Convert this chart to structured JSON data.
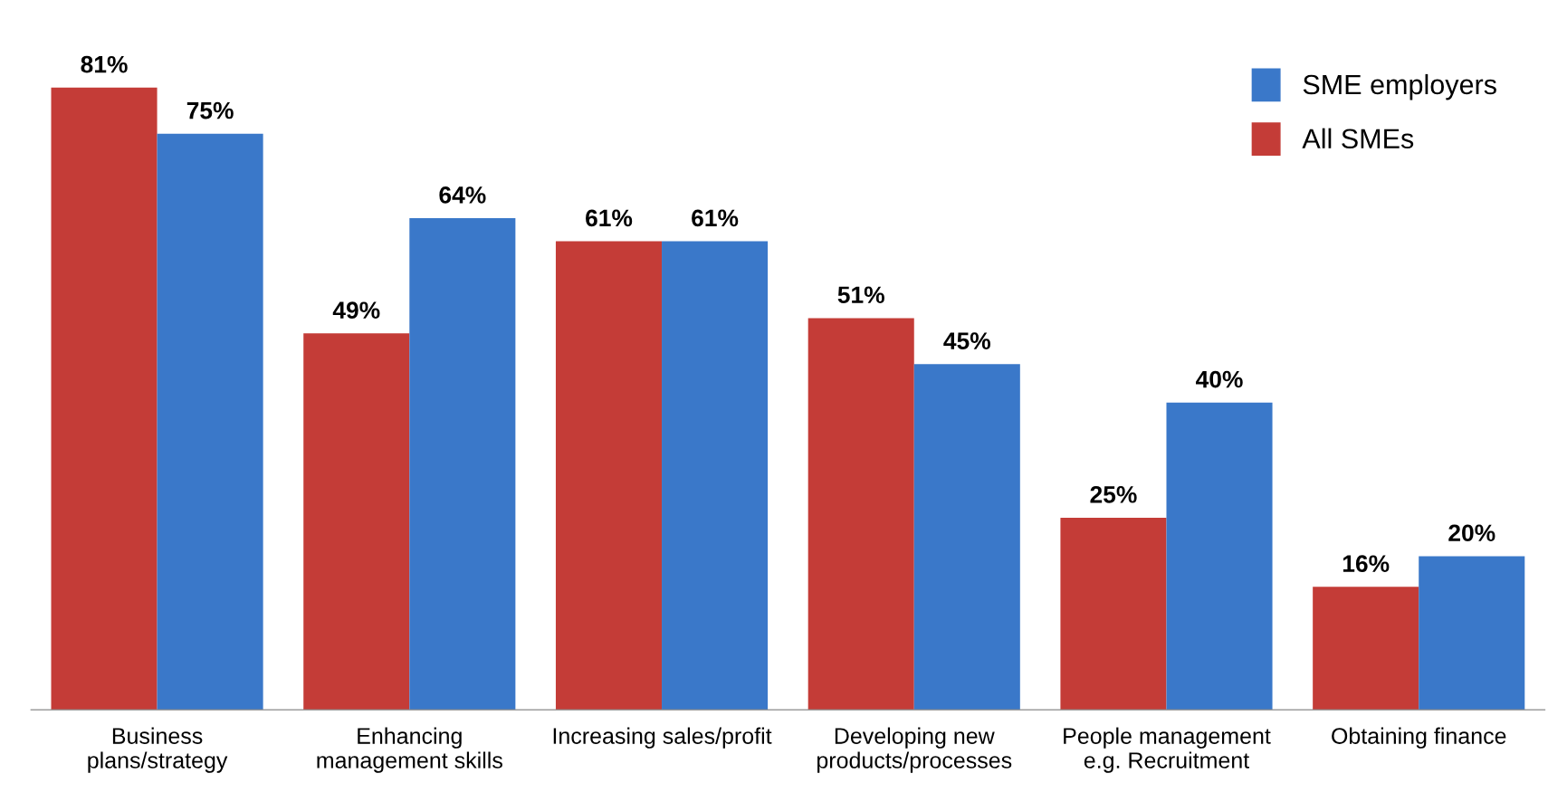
{
  "chart_data": {
    "type": "bar",
    "categories": [
      "Business\nplans/strategy",
      "Enhancing\nmanagement skills",
      "Increasing sales/profit",
      "Developing new\nproducts/processes",
      "People management\ne.g. Recruitment",
      "Obtaining finance"
    ],
    "series": [
      {
        "name": "All SMEs",
        "color": "#c43c37",
        "values": [
          81,
          49,
          61,
          51,
          25,
          16
        ],
        "value_labels": [
          "81%",
          "49%",
          "61%",
          "51%",
          "25%",
          "16%"
        ]
      },
      {
        "name": "SME employers",
        "color": "#3a78c9",
        "values": [
          75,
          64,
          61,
          45,
          40,
          20
        ],
        "value_labels": [
          "75%",
          "64%",
          "61%",
          "45%",
          "40%",
          "20%"
        ]
      }
    ],
    "legend": "top right",
    "grid": false
  }
}
